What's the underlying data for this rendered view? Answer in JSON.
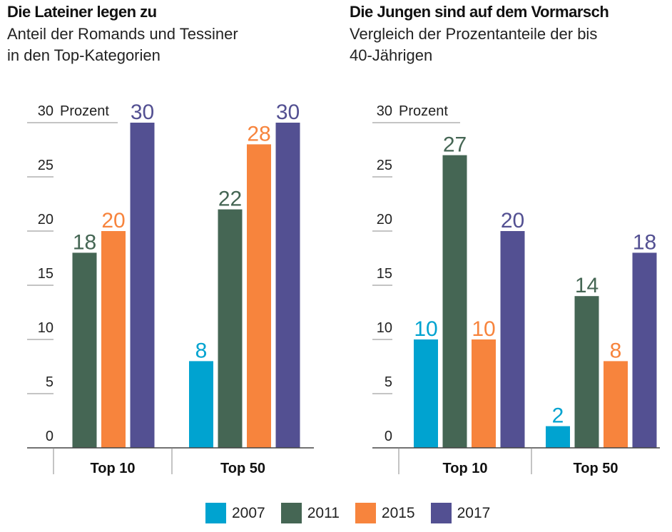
{
  "chart_data": [
    {
      "type": "bar",
      "title": "Die Lateiner legen zu",
      "subtitle_lines": [
        "Anteil der Romands und Tessiner",
        "in den Top-Kategorien"
      ],
      "ylabel": "Prozent",
      "ylim": [
        0,
        30
      ],
      "yticks": [
        0,
        5,
        10,
        15,
        20,
        25,
        30
      ],
      "categories": [
        "Top 10",
        "Top 50"
      ],
      "series": [
        {
          "name": "2007",
          "values": [
            null,
            8
          ]
        },
        {
          "name": "2011",
          "values": [
            18,
            22
          ]
        },
        {
          "name": "2015",
          "values": [
            20,
            28
          ]
        },
        {
          "name": "2017",
          "values": [
            30,
            30
          ]
        }
      ]
    },
    {
      "type": "bar",
      "title": "Die Jungen sind auf dem Vormarsch",
      "subtitle_lines": [
        "Vergleich der Prozentanteile der bis",
        "40-Jährigen"
      ],
      "ylabel": "Prozent",
      "ylim": [
        0,
        30
      ],
      "yticks": [
        0,
        5,
        10,
        15,
        20,
        25,
        30
      ],
      "categories": [
        "Top 10",
        "Top 50"
      ],
      "series": [
        {
          "name": "2007",
          "values": [
            10,
            2
          ]
        },
        {
          "name": "2011",
          "values": [
            27,
            14
          ]
        },
        {
          "name": "2015",
          "values": [
            10,
            8
          ]
        },
        {
          "name": "2017",
          "values": [
            20,
            18
          ]
        }
      ]
    }
  ],
  "legend": [
    {
      "label": "2007",
      "color": "#00a3d0"
    },
    {
      "label": "2011",
      "color": "#456654"
    },
    {
      "label": "2015",
      "color": "#f7843d"
    },
    {
      "label": "2017",
      "color": "#535092"
    }
  ]
}
